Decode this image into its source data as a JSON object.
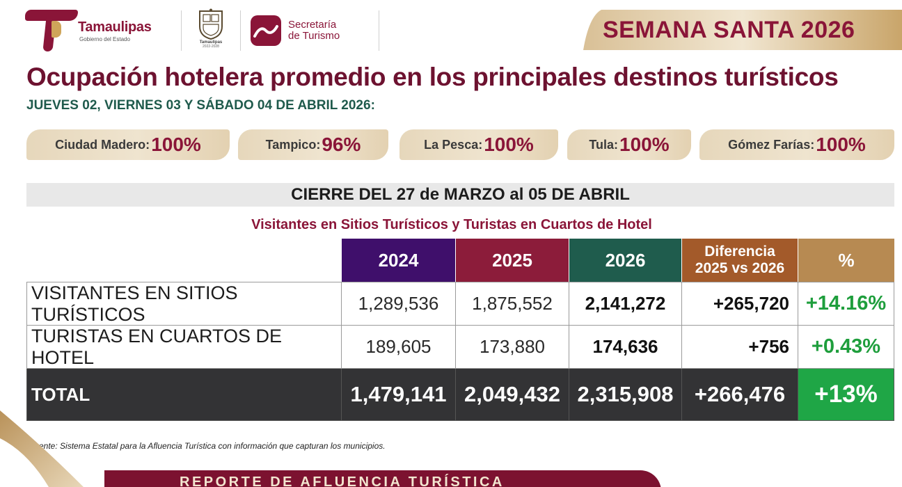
{
  "header": {
    "brand_name": "Tamaulipas",
    "brand_sub": "Gobierno del Estado",
    "seal_name": "Tamaulipas",
    "seal_years": "2022-2028",
    "tourism_line1": "Secretaría",
    "tourism_line2": "de Turismo",
    "banner": "SEMANA SANTA 2026",
    "colors": {
      "maroon": "#8a1538",
      "gold": "#cfa55a",
      "green": "#1f5a4c"
    }
  },
  "title": "Ocupación hotelera promedio en los principales destinos turísticos",
  "subtitle": "JUEVES 02, VIERNES 03 Y SÁBADO 04 DE ABRIL 2026:",
  "occupancy": [
    {
      "destination": "Ciudad Madero:",
      "value": "100%"
    },
    {
      "destination": "Tampico:",
      "value": "96%"
    },
    {
      "destination": "La Pesca:",
      "value": "100%"
    },
    {
      "destination": "Tula:",
      "value": "100%"
    },
    {
      "destination": "Gómez Farías:",
      "value": "100%"
    }
  ],
  "closing": "CIERRE DEL 27 de MARZO al 05 DE ABRIL",
  "table": {
    "caption": "Visitantes en Sitios Turísticos y Turistas en Cuartos de Hotel",
    "headers": {
      "y2024": "2024",
      "y2025": "2025",
      "y2026": "2026",
      "diff_line1": "Diferencia",
      "diff_line2": "2025 vs 2026",
      "pct": "%"
    },
    "header_colors": {
      "y2024": "#3f0f6b",
      "y2025": "#8c1c3a",
      "y2026": "#1f5c4d",
      "diff": "#a35a2a",
      "pct": "#b78a52"
    },
    "rows": [
      {
        "label": "VISITANTES EN SITIOS TURÍSTICOS",
        "y2024": "1,289,536",
        "y2025": "1,875,552",
        "y2026": "2,141,272",
        "diff": "+265,720",
        "pct": "+14.16%"
      },
      {
        "label": "TURISTAS EN CUARTOS DE HOTEL",
        "y2024": "189,605",
        "y2025": "173,880",
        "y2026": "174,636",
        "diff": "+756",
        "pct": "+0.43%"
      }
    ],
    "total": {
      "label": "TOTAL",
      "y2024": "1,479,141",
      "y2025": "2,049,432",
      "y2026": "2,315,908",
      "diff": "+266,476",
      "pct": "+13%"
    }
  },
  "source": "Fuente: Sistema Estatal para la Afluencia Turística con información que capturan los municipios.",
  "footer": {
    "band_text": "REPORTE DE AFLUENCIA TURÍSTICA"
  }
}
